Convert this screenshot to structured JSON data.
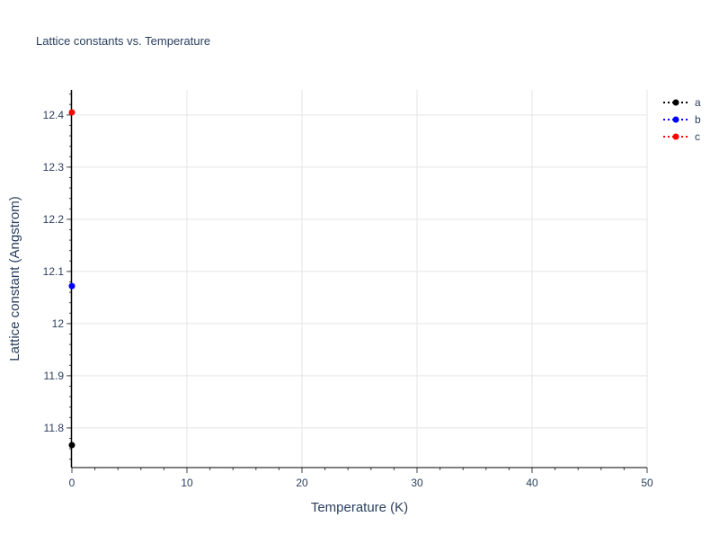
{
  "chart_data": {
    "type": "scatter",
    "title": "Lattice constants vs. Temperature",
    "xlabel": "Temperature (K)",
    "ylabel": "Lattice constant (Angstrom)",
    "xlim": [
      0,
      50
    ],
    "ylim": [
      11.724,
      12.448
    ],
    "x_ticks": [
      0,
      10,
      20,
      30,
      40,
      50
    ],
    "y_ticks": [
      11.8,
      11.9,
      12,
      12.1,
      12.2,
      12.3,
      12.4
    ],
    "x_tick_labels": [
      "0",
      "10",
      "20",
      "30",
      "40",
      "50"
    ],
    "y_tick_labels": [
      "11.8",
      "11.9",
      "12",
      "12.1",
      "12.2",
      "12.3",
      "12.4"
    ],
    "grid": true,
    "legend_position": "top-right",
    "line_style": "dotted with markers",
    "series": [
      {
        "name": "a",
        "color": "#000000",
        "x": [
          0
        ],
        "y": [
          11.767
        ]
      },
      {
        "name": "b",
        "color": "#0000ff",
        "x": [
          0
        ],
        "y": [
          12.072
        ]
      },
      {
        "name": "c",
        "color": "#ff0000",
        "x": [
          0
        ],
        "y": [
          12.405
        ]
      }
    ]
  }
}
